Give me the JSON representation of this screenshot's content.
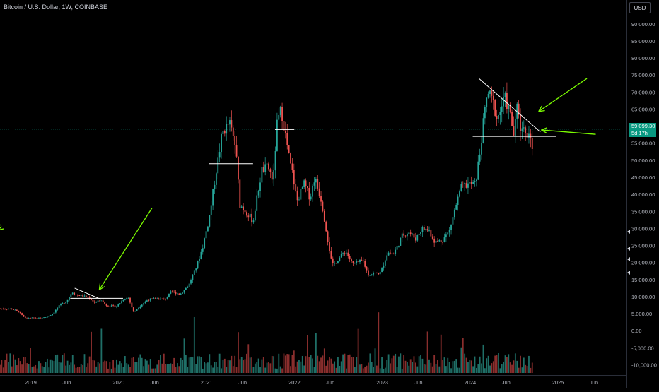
{
  "header": {
    "title": "Bitcoin / U.S. Dollar, 1W, COINBASE",
    "currency": "USD"
  },
  "price_badge": {
    "price": "59,099.30",
    "countdown": "5d 17h"
  },
  "colors": {
    "up": "#26a69a",
    "down": "#ef5350",
    "annotation": "#ffffff",
    "arrow": "#7cfc00",
    "price_line": "#089981"
  },
  "chart_data": {
    "type": "candlestick",
    "title": "Bitcoin / U.S. Dollar, 1W, COINBASE",
    "y_unit": "USD",
    "ylim": [
      -13000,
      97000
    ],
    "y_ticks": [
      {
        "value": 90000,
        "label": "90,000.00"
      },
      {
        "value": 85000,
        "label": "85,000.00"
      },
      {
        "value": 80000,
        "label": "80,000.00"
      },
      {
        "value": 75000,
        "label": "75,000.00"
      },
      {
        "value": 70000,
        "label": "70,000.00"
      },
      {
        "value": 65000,
        "label": "65,000.00"
      },
      {
        "value": 55000,
        "label": "55,000.00"
      },
      {
        "value": 50000,
        "label": "50,000.00"
      },
      {
        "value": 45000,
        "label": "45,000.00"
      },
      {
        "value": 40000,
        "label": "40,000.00"
      },
      {
        "value": 35000,
        "label": "35,000.00"
      },
      {
        "value": 30000,
        "label": "30,000.00"
      },
      {
        "value": 25000,
        "label": "25,000.00"
      },
      {
        "value": 20000,
        "label": "20,000.00"
      },
      {
        "value": 15000,
        "label": "15,000.00"
      },
      {
        "value": 10000,
        "label": "10,000.00"
      },
      {
        "value": 5000,
        "label": "5,000.00"
      },
      {
        "value": 0,
        "label": "0.00"
      },
      {
        "value": -5000,
        "label": "-5,000.00"
      },
      {
        "value": -10000,
        "label": "-10,000.00"
      }
    ],
    "x_ticks": [
      {
        "year": 2019.0,
        "label": "2019"
      },
      {
        "year": 2019.41,
        "label": "Jun"
      },
      {
        "year": 2020.0,
        "label": "2020"
      },
      {
        "year": 2020.41,
        "label": "Jun"
      },
      {
        "year": 2021.0,
        "label": "2021"
      },
      {
        "year": 2021.41,
        "label": "Jun"
      },
      {
        "year": 2022.0,
        "label": "2022"
      },
      {
        "year": 2022.41,
        "label": "Jun"
      },
      {
        "year": 2023.0,
        "label": "2023"
      },
      {
        "year": 2023.41,
        "label": "Jun"
      },
      {
        "year": 2024.0,
        "label": "2024"
      },
      {
        "year": 2024.41,
        "label": "Jun"
      },
      {
        "year": 2025.0,
        "label": "2025"
      },
      {
        "year": 2025.41,
        "label": "Jun"
      }
    ],
    "xlim": [
      2018.65,
      2025.78
    ],
    "current_price": 59099.3,
    "price_path": [
      [
        2018.65,
        6500
      ],
      [
        2018.8,
        6400
      ],
      [
        2018.88,
        5600
      ],
      [
        2018.95,
        3700
      ],
      [
        2019.0,
        3800
      ],
      [
        2019.1,
        3700
      ],
      [
        2019.2,
        4000
      ],
      [
        2019.27,
        5000
      ],
      [
        2019.35,
        7500
      ],
      [
        2019.43,
        8700
      ],
      [
        2019.49,
        11500
      ],
      [
        2019.53,
        10500
      ],
      [
        2019.6,
        10300
      ],
      [
        2019.68,
        9700
      ],
      [
        2019.75,
        8200
      ],
      [
        2019.82,
        9100
      ],
      [
        2019.87,
        7500
      ],
      [
        2019.95,
        7200
      ],
      [
        2020.0,
        7200
      ],
      [
        2020.08,
        9400
      ],
      [
        2020.13,
        9700
      ],
      [
        2020.19,
        5400
      ],
      [
        2020.26,
        7200
      ],
      [
        2020.35,
        9100
      ],
      [
        2020.45,
        9400
      ],
      [
        2020.55,
        9200
      ],
      [
        2020.62,
        11500
      ],
      [
        2020.72,
        10700
      ],
      [
        2020.82,
        13500
      ],
      [
        2020.9,
        18500
      ],
      [
        2020.97,
        24000
      ],
      [
        2021.05,
        33000
      ],
      [
        2021.13,
        47000
      ],
      [
        2021.2,
        58000
      ],
      [
        2021.28,
        61000
      ],
      [
        2021.35,
        54000
      ],
      [
        2021.4,
        37000
      ],
      [
        2021.47,
        35000
      ],
      [
        2021.55,
        32000
      ],
      [
        2021.6,
        40000
      ],
      [
        2021.65,
        47000
      ],
      [
        2021.72,
        48000
      ],
      [
        2021.78,
        44000
      ],
      [
        2021.82,
        60000
      ],
      [
        2021.87,
        65000
      ],
      [
        2021.92,
        57000
      ],
      [
        2021.97,
        49000
      ],
      [
        2022.0,
        46000
      ],
      [
        2022.05,
        38000
      ],
      [
        2022.13,
        43000
      ],
      [
        2022.2,
        39000
      ],
      [
        2022.25,
        45000
      ],
      [
        2022.33,
        38000
      ],
      [
        2022.38,
        30000
      ],
      [
        2022.45,
        19000
      ],
      [
        2022.52,
        21000
      ],
      [
        2022.6,
        23500
      ],
      [
        2022.68,
        19500
      ],
      [
        2022.8,
        20500
      ],
      [
        2022.86,
        16500
      ],
      [
        2022.95,
        16800
      ],
      [
        2023.0,
        17000
      ],
      [
        2023.08,
        23000
      ],
      [
        2023.15,
        22500
      ],
      [
        2023.25,
        28000
      ],
      [
        2023.32,
        29000
      ],
      [
        2023.4,
        27000
      ],
      [
        2023.47,
        30000
      ],
      [
        2023.55,
        29500
      ],
      [
        2023.62,
        26000
      ],
      [
        2023.7,
        26500
      ],
      [
        2023.78,
        29000
      ],
      [
        2023.85,
        36000
      ],
      [
        2023.92,
        42000
      ],
      [
        2024.0,
        43000
      ],
      [
        2024.08,
        43000
      ],
      [
        2024.13,
        52000
      ],
      [
        2024.18,
        63000
      ],
      [
        2024.22,
        70000
      ],
      [
        2024.28,
        67000
      ],
      [
        2024.33,
        62000
      ],
      [
        2024.38,
        66000
      ],
      [
        2024.42,
        68000
      ],
      [
        2024.47,
        64000
      ],
      [
        2024.52,
        57000
      ],
      [
        2024.56,
        67000
      ],
      [
        2024.6,
        58000
      ],
      [
        2024.64,
        61000
      ],
      [
        2024.67,
        56000
      ],
      [
        2024.7,
        60000
      ],
      [
        2024.72,
        54000
      ]
    ],
    "annotations": {
      "lines": [
        {
          "x1": 2019.5,
          "y1": 12500,
          "x2": 2019.8,
          "y2": 9200
        },
        {
          "x1": 2019.45,
          "y1": 9500,
          "x2": 2020.05,
          "y2": 9500
        },
        {
          "x1": 2021.03,
          "y1": 49000,
          "x2": 2021.53,
          "y2": 49000
        },
        {
          "x1": 2021.78,
          "y1": 59000,
          "x2": 2022.0,
          "y2": 59000
        },
        {
          "x1": 2024.1,
          "y1": 74000,
          "x2": 2024.8,
          "y2": 58300
        },
        {
          "x1": 2024.03,
          "y1": 57000,
          "x2": 2024.98,
          "y2": 57000
        }
      ],
      "arrows": [
        {
          "x1": 2020.38,
          "y1": 36000,
          "x2": 2019.78,
          "y2": 12000
        },
        {
          "x1": 2025.33,
          "y1": 74000,
          "x2": 2024.78,
          "y2": 64300
        },
        {
          "x1": 2025.43,
          "y1": 57600,
          "x2": 2024.81,
          "y2": 58900
        },
        {
          "x1": 2018.67,
          "y1": 30500,
          "x2": 2018.62,
          "y2": 29500
        }
      ]
    }
  }
}
